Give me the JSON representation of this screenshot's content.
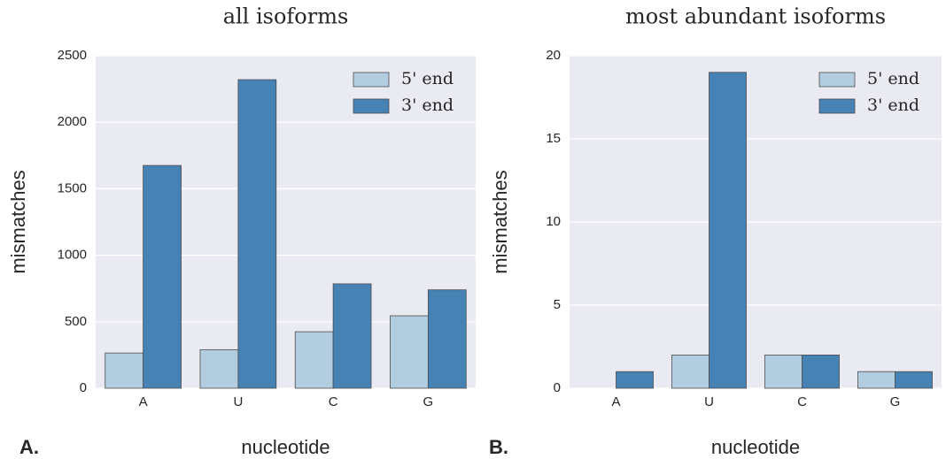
{
  "chart_data": [
    {
      "type": "bar",
      "title": "all isoforms",
      "panel_label": "A.",
      "x_label": "nucleotide",
      "y_label": "mismatches",
      "categories": [
        "A",
        "U",
        "C",
        "G"
      ],
      "series": [
        {
          "name": "5' end",
          "color": "#b3cde0",
          "values": [
            265,
            290,
            425,
            545
          ]
        },
        {
          "name": "3' end",
          "color": "#4682b4",
          "values": [
            1675,
            2320,
            785,
            740
          ]
        }
      ],
      "ylim": [
        0,
        2500
      ],
      "yticks": [
        0,
        500,
        1000,
        1500,
        2000,
        2500
      ],
      "grid": true,
      "legend": "upper right"
    },
    {
      "type": "bar",
      "title": "most abundant isoforms",
      "panel_label": "B.",
      "x_label": "nucleotide",
      "y_label": "mismatches",
      "categories": [
        "A",
        "U",
        "C",
        "G"
      ],
      "series": [
        {
          "name": "5' end",
          "color": "#b3cde0",
          "values": [
            0,
            2,
            2,
            1
          ]
        },
        {
          "name": "3' end",
          "color": "#4682b4",
          "values": [
            1,
            19,
            2,
            1
          ]
        }
      ],
      "ylim": [
        0,
        20
      ],
      "yticks": [
        0,
        5,
        10,
        15,
        20
      ],
      "grid": true,
      "legend": "upper right"
    }
  ]
}
